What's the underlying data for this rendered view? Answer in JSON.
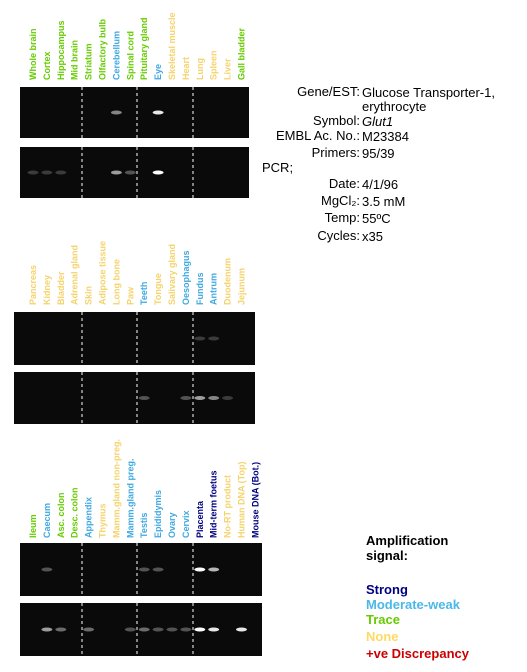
{
  "panels": [
    {
      "lanes": [
        {
          "label": "Whole brain",
          "color": "#66cc00"
        },
        {
          "label": "Cortex",
          "color": "#66cc00"
        },
        {
          "label": "Hippocampus",
          "color": "#66cc00"
        },
        {
          "label": "Mid brain",
          "color": "#66cc00"
        },
        {
          "label": "Striatum",
          "color": "#66cc00"
        },
        {
          "label": "Olfactory bulb",
          "color": "#66cc00"
        },
        {
          "label": "Cerebellum",
          "color": "#3fa9e0"
        },
        {
          "label": "Spinal cord",
          "color": "#66cc00"
        },
        {
          "label": "Pituitary gland",
          "color": "#66cc00"
        },
        {
          "label": "Eye",
          "color": "#3fa9e0"
        },
        {
          "label": "Skeletal muscle",
          "color": "#f5d36b"
        },
        {
          "label": "Heart",
          "color": "#f5d36b"
        },
        {
          "label": "Lung",
          "color": "#f5d36b"
        },
        {
          "label": "Spleen",
          "color": "#f5d36b"
        },
        {
          "label": "Liver",
          "color": "#f5d36b"
        },
        {
          "label": "Gall bladder",
          "color": "#66cc00"
        }
      ]
    },
    {
      "lanes": [
        {
          "label": "Pancreas",
          "color": "#f5d36b"
        },
        {
          "label": "Kidney",
          "color": "#f5d36b"
        },
        {
          "label": "Bladder",
          "color": "#f5d36b"
        },
        {
          "label": "Adrenal gland",
          "color": "#f5d36b"
        },
        {
          "label": "Skin",
          "color": "#f5d36b"
        },
        {
          "label": "Adipose tissue",
          "color": "#f5d36b"
        },
        {
          "label": "Long bone",
          "color": "#f5d36b"
        },
        {
          "label": "Paw",
          "color": "#f5d36b"
        },
        {
          "label": "Teeth",
          "color": "#3fa9e0"
        },
        {
          "label": "Tongue",
          "color": "#f5d36b"
        },
        {
          "label": "Salivary gland",
          "color": "#f5d36b"
        },
        {
          "label": "Oesophagus",
          "color": "#3fa9e0"
        },
        {
          "label": "Fundus",
          "color": "#3fa9e0"
        },
        {
          "label": "Antrum",
          "color": "#3fa9e0"
        },
        {
          "label": "Duodenum",
          "color": "#f5d36b"
        },
        {
          "label": "Jejunum",
          "color": "#f5d36b"
        }
      ]
    },
    {
      "lanes": [
        {
          "label": "Ileum",
          "color": "#66cc00"
        },
        {
          "label": "Caecum",
          "color": "#3fa9e0"
        },
        {
          "label": "Asc. colon",
          "color": "#66cc00"
        },
        {
          "label": "Desc. colon",
          "color": "#66cc00"
        },
        {
          "label": "Appendix",
          "color": "#3fa9e0"
        },
        {
          "label": "Thymus",
          "color": "#f5d36b"
        },
        {
          "label": "Mamm.gland non-preg.",
          "color": "#f5d36b"
        },
        {
          "label": "Mamm.gland preg.",
          "color": "#3fa9e0"
        },
        {
          "label": "Testis",
          "color": "#3fa9e0"
        },
        {
          "label": "Epididymis",
          "color": "#3fa9e0"
        },
        {
          "label": "Ovary",
          "color": "#3fa9e0"
        },
        {
          "label": "Cervix",
          "color": "#3fa9e0"
        },
        {
          "label": "Placenta",
          "color": "#000080"
        },
        {
          "label": "Mid-term foetus",
          "color": "#000080"
        },
        {
          "label": "No-RT product",
          "color": "#f5d36b"
        },
        {
          "label": "Human DNA (Top)",
          "color": "#f5d36b"
        },
        {
          "label": "Mouse DNA (Bot.)",
          "color": "#000080"
        }
      ]
    }
  ],
  "info": {
    "rows": [
      {
        "label": "Gene/EST:",
        "value": "Glucose Transporter-1, erythrocyte"
      },
      {
        "label": "Symbol:",
        "value": "Glut1"
      },
      {
        "label": "EMBL Ac. No.:",
        "value": "M23384"
      },
      {
        "label": "Primers:",
        "value": "95/39"
      }
    ],
    "pcr_heading": "PCR;",
    "pcr_rows": [
      {
        "label": "Date:",
        "value": "4/1/96"
      },
      {
        "label": "MgCl₂:",
        "value": "3.5 mM"
      },
      {
        "label": "Temp:",
        "value": "55ºC"
      },
      {
        "label": "Cycles:",
        "value": "x35"
      }
    ]
  },
  "legend": {
    "title": "Amplification signal:",
    "items": [
      {
        "label": "Strong",
        "color": "#000080"
      },
      {
        "label": "Moderate-weak",
        "color": "#4ab8e8"
      },
      {
        "label": "Trace",
        "color": "#66cc00"
      },
      {
        "label": "None",
        "color": "#ffd966"
      },
      {
        "label": "+ve Discrepancy",
        "color": "#cc0000"
      }
    ]
  }
}
